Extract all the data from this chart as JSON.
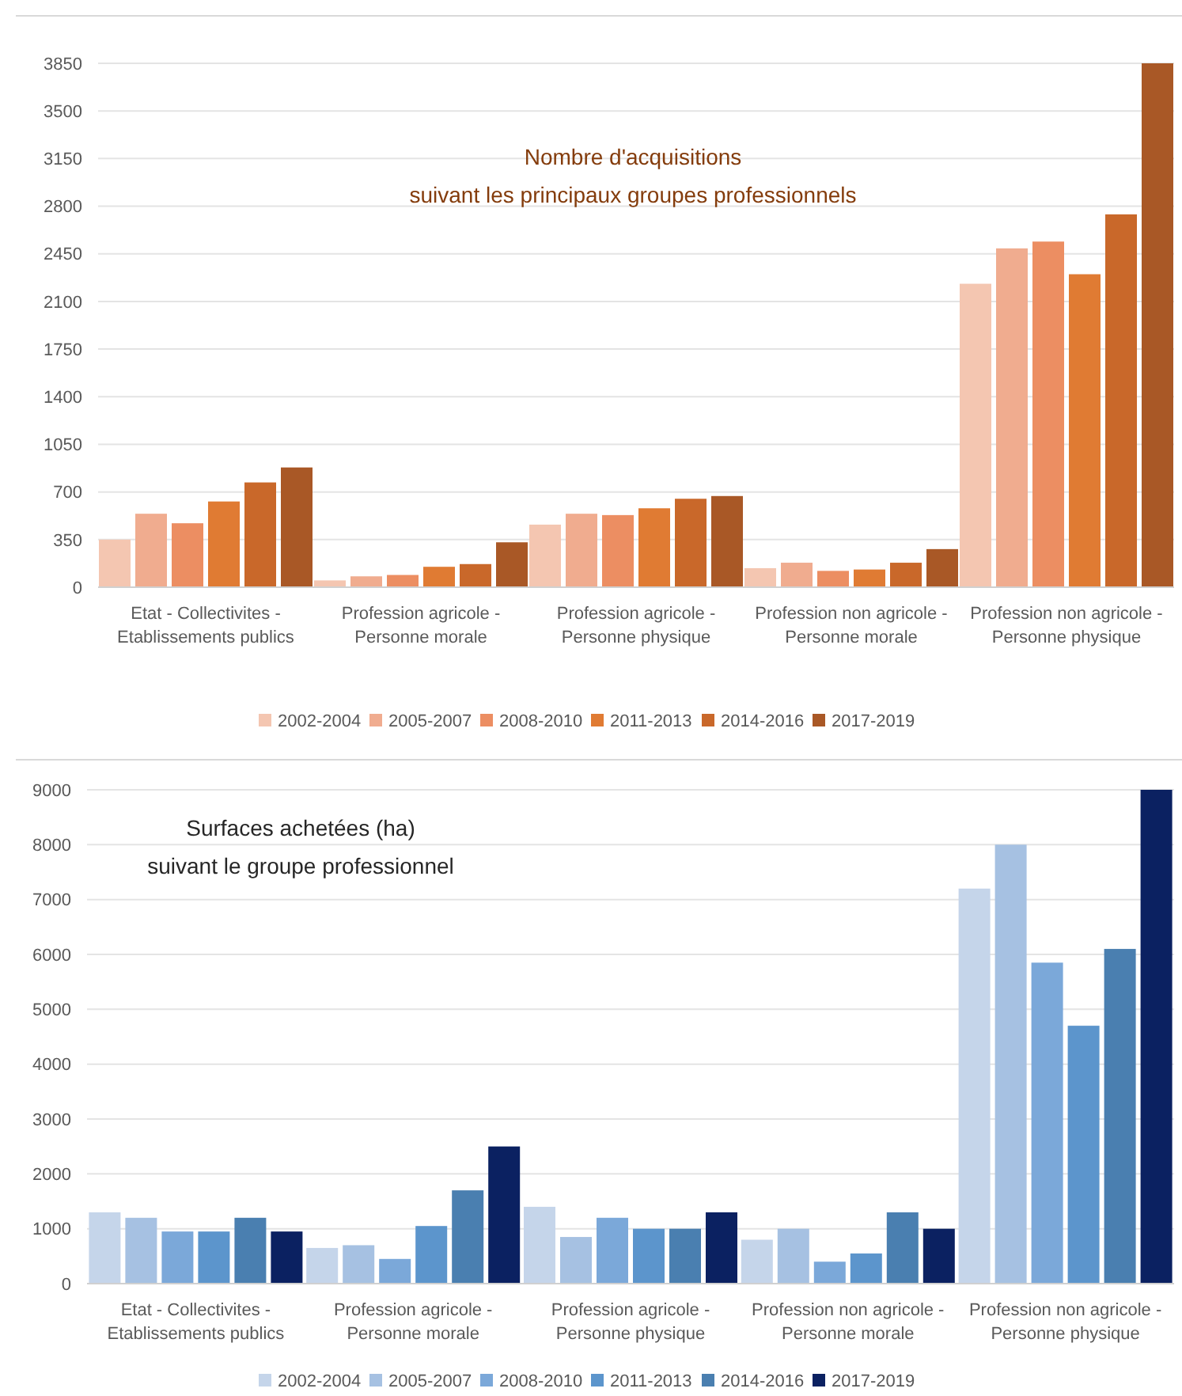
{
  "chart_data": [
    {
      "type": "bar",
      "title": "Nombre d'acquisitions\nsuivant les principaux  groupes professionnels",
      "categories": [
        "Etat - Collectivites - Etablissements publics",
        "Profession agricole - Personne morale",
        "Profession agricole - Personne physique",
        "Profession non agricole - Personne morale",
        "Profession non agricole - Personne physique"
      ],
      "series": [
        {
          "name": "2002-2004",
          "color": "#f4c6b1",
          "values": [
            350,
            50,
            460,
            140,
            2230
          ]
        },
        {
          "name": "2005-2007",
          "color": "#f0ac8f",
          "values": [
            540,
            80,
            540,
            180,
            2490
          ]
        },
        {
          "name": "2008-2010",
          "color": "#ec8e62",
          "values": [
            470,
            90,
            530,
            120,
            2540
          ]
        },
        {
          "name": "2011-2013",
          "color": "#e07b33",
          "values": [
            630,
            150,
            580,
            130,
            2300
          ]
        },
        {
          "name": "2014-2016",
          "color": "#c9682a",
          "values": [
            770,
            170,
            650,
            180,
            2740
          ]
        },
        {
          "name": "2017-2019",
          "color": "#a95826",
          "values": [
            880,
            330,
            670,
            280,
            3850
          ]
        }
      ],
      "ylim": [
        0,
        3850
      ],
      "yticks": [
        0,
        350,
        700,
        1050,
        1400,
        1750,
        2100,
        2450,
        2800,
        3150,
        3500,
        3850
      ],
      "grid": "y",
      "legend": "bottom"
    },
    {
      "type": "bar",
      "title": "Surfaces achetées (ha)\nsuivant le groupe professionnel",
      "categories": [
        "Etat - Collectivites - Etablissements publics",
        "Profession agricole - Personne morale",
        "Profession agricole - Personne physique",
        "Profession non agricole - Personne morale",
        "Profession non agricole - Personne physique"
      ],
      "series": [
        {
          "name": "2002-2004",
          "color": "#c5d5ea",
          "values": [
            1300,
            650,
            1400,
            800,
            7200
          ]
        },
        {
          "name": "2005-2007",
          "color": "#a6c1e2",
          "values": [
            1200,
            700,
            850,
            1000,
            8000
          ]
        },
        {
          "name": "2008-2010",
          "color": "#7ba8d9",
          "values": [
            950,
            450,
            1200,
            400,
            5850
          ]
        },
        {
          "name": "2011-2013",
          "color": "#5c95cc",
          "values": [
            950,
            1050,
            1000,
            550,
            4700
          ]
        },
        {
          "name": "2014-2016",
          "color": "#4a7fb0",
          "values": [
            1200,
            1700,
            1000,
            1300,
            6100
          ]
        },
        {
          "name": "2017-2019",
          "color": "#0b2161",
          "values": [
            950,
            2500,
            1300,
            1000,
            9000
          ]
        }
      ],
      "ylim": [
        0,
        9000
      ],
      "yticks": [
        0,
        1000,
        2000,
        3000,
        4000,
        5000,
        6000,
        7000,
        8000,
        9000
      ],
      "grid": "y",
      "legend": "bottom"
    }
  ]
}
